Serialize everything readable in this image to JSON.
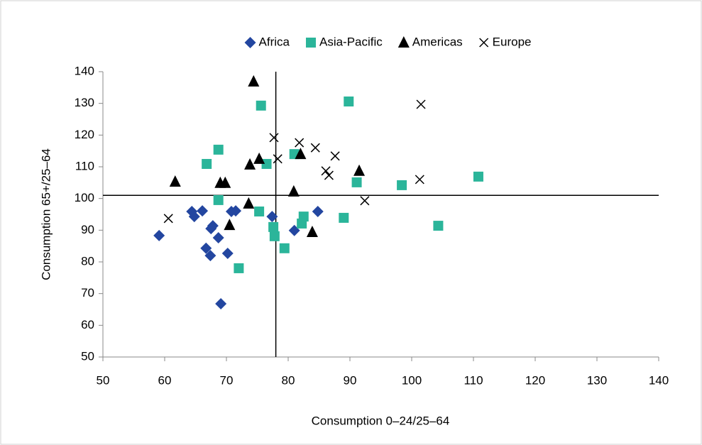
{
  "chart_data": {
    "type": "scatter",
    "x_label": "Consumption 0–24/25–64",
    "y_label": "Consumption 65+/25–64",
    "xlim": [
      50,
      140
    ],
    "xticks": [
      50,
      60,
      70,
      80,
      90,
      100,
      110,
      120,
      130,
      140
    ],
    "ylim": [
      50,
      140
    ],
    "yticks": [
      50,
      60,
      70,
      80,
      90,
      100,
      110,
      120,
      130,
      140
    ],
    "reference_lines": {
      "x": 78,
      "y": 101
    },
    "legend": "top",
    "series": [
      {
        "name": "Africa",
        "color": "#2346a0",
        "marker": "diamond",
        "x": [
          59.1,
          64.4,
          66.1,
          64.8,
          67.8,
          67.5,
          66.7,
          67.4,
          68.7,
          70.2,
          69.1,
          70.8,
          71.5,
          77.4,
          81.0,
          84.8
        ],
        "y": [
          88.3,
          95.9,
          96.1,
          94.3,
          91.4,
          90.5,
          84.3,
          82.0,
          87.6,
          82.7,
          66.8,
          95.9,
          96.1,
          94.3,
          89.9,
          95.9
        ]
      },
      {
        "name": "Asia-Pacific",
        "color": "#2bb59a",
        "marker": "square",
        "x": [
          68.7,
          66.8,
          68.7,
          75.6,
          76.5,
          75.3,
          77.6,
          77.8,
          79.4,
          72.0,
          81.0,
          82.5,
          82.2,
          89.8,
          89.0,
          91.1,
          98.4,
          104.3,
          110.8
        ],
        "y": [
          115.4,
          110.9,
          99.5,
          129.3,
          110.9,
          95.9,
          91.0,
          88.1,
          84.3,
          78.0,
          114.0,
          94.3,
          92.1,
          130.6,
          93.9,
          105.1,
          104.2,
          91.4,
          106.9
        ]
      },
      {
        "name": "Americas",
        "color": "#000000",
        "marker": "triangle",
        "x": [
          61.7,
          74.4,
          69.0,
          69.8,
          70.5,
          73.8,
          75.3,
          73.6,
          82.0,
          80.9,
          83.9,
          91.5
        ],
        "y": [
          105.3,
          136.9,
          104.9,
          104.9,
          91.6,
          110.7,
          112.5,
          98.4,
          114.0,
          102.2,
          89.4,
          108.7
        ]
      },
      {
        "name": "Europe",
        "color": "#000000",
        "marker": "cross",
        "x": [
          60.6,
          77.7,
          78.3,
          81.8,
          84.4,
          87.6,
          86.1,
          86.6,
          92.4,
          101.5,
          101.3
        ],
        "y": [
          93.7,
          119.2,
          112.5,
          117.6,
          116.0,
          113.4,
          108.7,
          107.3,
          99.3,
          129.7,
          106.0
        ]
      }
    ]
  }
}
